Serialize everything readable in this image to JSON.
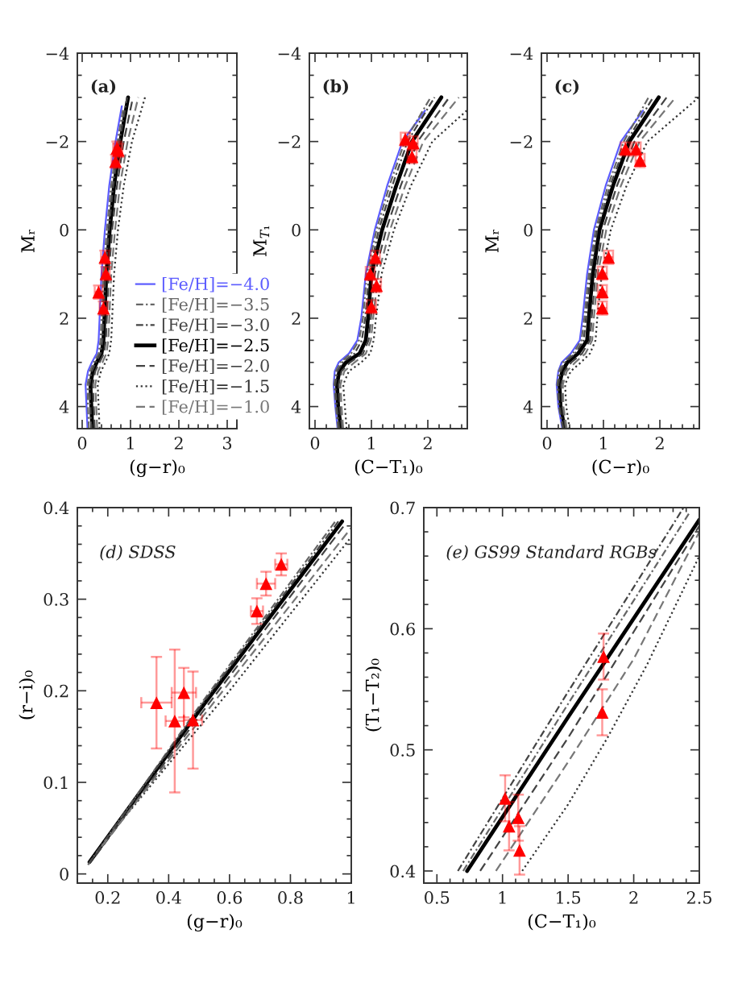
{
  "chart_data": [
    {
      "type": "line",
      "title": "(a)",
      "xlabel": "(g−r)₀",
      "ylabel": "Mᵣ",
      "xlim": [
        -0.1,
        3.2
      ],
      "ylim": [
        4.5,
        -4
      ],
      "xticks": [
        0,
        1,
        2,
        3
      ],
      "yticks": [
        -4,
        -2,
        0,
        2,
        4
      ],
      "legend": "lower right",
      "series": [
        {
          "name": "[Fe/H]=−4.0",
          "color": "#5c5cff",
          "line_style": "solid",
          "x": [
            0.11,
            0.09,
            0.07,
            0.12,
            0.2,
            0.3,
            0.34,
            0.36,
            0.4,
            0.47,
            0.56,
            0.69,
            0.82
          ],
          "values": [
            4.5,
            4.0,
            3.5,
            3.2,
            3.0,
            2.8,
            2.5,
            2.0,
            1.0,
            0.0,
            -1.0,
            -2.0,
            -2.8
          ]
        },
        {
          "name": "[Fe/H]=−3.5",
          "color": "#666666",
          "line_style": "dashdot",
          "x": [
            0.14,
            0.12,
            0.11,
            0.16,
            0.24,
            0.34,
            0.38,
            0.4,
            0.44,
            0.51,
            0.6,
            0.73,
            0.85
          ],
          "values": [
            4.5,
            4.0,
            3.5,
            3.2,
            3.0,
            2.8,
            2.5,
            2.0,
            1.0,
            0.0,
            -1.0,
            -2.0,
            -2.75
          ]
        },
        {
          "name": "[Fe/H]=−3.0",
          "color": "#444444",
          "line_style": "dashdot",
          "x": [
            0.19,
            0.17,
            0.15,
            0.2,
            0.28,
            0.38,
            0.42,
            0.44,
            0.48,
            0.55,
            0.64,
            0.77,
            0.93
          ],
          "values": [
            4.5,
            4.0,
            3.5,
            3.2,
            3.0,
            2.8,
            2.5,
            2.0,
            1.0,
            0.0,
            -1.0,
            -2.0,
            -3.0
          ]
        },
        {
          "name": "[Fe/H]=−2.5",
          "color": "#000000",
          "line_style": "solid",
          "x": [
            0.21,
            0.19,
            0.17,
            0.22,
            0.3,
            0.4,
            0.44,
            0.46,
            0.5,
            0.57,
            0.66,
            0.79,
            0.95
          ],
          "values": [
            4.5,
            4.0,
            3.5,
            3.2,
            3.0,
            2.8,
            2.5,
            2.0,
            1.0,
            0.0,
            -1.0,
            -2.0,
            -3.0
          ]
        },
        {
          "name": "[Fe/H]=−2.0",
          "color": "#444444",
          "line_style": "dashed",
          "x": [
            0.26,
            0.24,
            0.22,
            0.27,
            0.36,
            0.45,
            0.49,
            0.51,
            0.55,
            0.62,
            0.72,
            0.86,
            1.05
          ],
          "values": [
            4.5,
            4.0,
            3.5,
            3.2,
            3.0,
            2.8,
            2.5,
            2.0,
            1.0,
            0.0,
            -1.0,
            -2.0,
            -3.0
          ]
        },
        {
          "name": "[Fe/H]=−1.5",
          "color": "#333333",
          "line_style": "dotted",
          "x": [
            0.36,
            0.34,
            0.32,
            0.39,
            0.48,
            0.56,
            0.6,
            0.62,
            0.66,
            0.74,
            0.86,
            1.03,
            1.3
          ],
          "values": [
            4.5,
            4.0,
            3.5,
            3.2,
            3.0,
            2.8,
            2.5,
            2.0,
            1.0,
            0.0,
            -1.0,
            -2.0,
            -3.0
          ]
        },
        {
          "name": "[Fe/H]=−1.0",
          "color": "#777777",
          "line_style": "dashed",
          "x": [
            0.31,
            0.29,
            0.27,
            0.33,
            0.42,
            0.5,
            0.54,
            0.56,
            0.6,
            0.68,
            0.78,
            0.94,
            1.16
          ],
          "values": [
            4.5,
            4.0,
            3.5,
            3.2,
            3.0,
            2.8,
            2.5,
            2.0,
            1.0,
            0.0,
            -1.0,
            -2.0,
            -3.0
          ]
        },
        {
          "type": "scatter",
          "color": "#ff0000",
          "marker": "triangle",
          "x": [
            0.72,
            0.75,
            0.69,
            0.47,
            0.49,
            0.34,
            0.44
          ],
          "values": [
            -1.85,
            -1.8,
            -1.55,
            0.62,
            0.99,
            1.41,
            1.77
          ],
          "errors": [
            0.15,
            0.15,
            0.15,
            0.15,
            0.15,
            0.15,
            0.15
          ],
          "xerrors": [
            0.08,
            0.08,
            0.08,
            0.08,
            0.08,
            0.08,
            0.08
          ]
        }
      ]
    },
    {
      "type": "line",
      "title": "(b)",
      "xlabel": "(C−T₁)₀",
      "ylabel": "M$_{T₁}$",
      "xlim": [
        -0.1,
        2.7
      ],
      "ylim": [
        4.5,
        -4
      ],
      "xticks": [
        0,
        1,
        2
      ],
      "yticks": [
        -4,
        -2,
        0,
        2,
        4
      ],
      "series": [
        {
          "color": "#5c5cff",
          "line_style": "solid",
          "x": [
            0.4,
            0.36,
            0.33,
            0.35,
            0.42,
            0.6,
            0.75,
            0.82,
            0.9,
            1.06,
            1.28,
            1.55,
            1.95
          ],
          "values": [
            4.5,
            4.0,
            3.5,
            3.2,
            3.0,
            2.8,
            2.5,
            2.0,
            1.0,
            0.0,
            -1.0,
            -2.0,
            -2.7
          ]
        },
        {
          "color": "#666666",
          "line_style": "dashdot",
          "x": [
            0.41,
            0.37,
            0.34,
            0.37,
            0.45,
            0.64,
            0.78,
            0.85,
            0.92,
            1.09,
            1.32,
            1.59,
            2.05
          ],
          "values": [
            4.5,
            4.0,
            3.5,
            3.2,
            3.0,
            2.8,
            2.5,
            2.0,
            1.0,
            0.0,
            -1.0,
            -2.0,
            -3.0
          ]
        },
        {
          "color": "#444444",
          "line_style": "dashdot",
          "x": [
            0.43,
            0.39,
            0.36,
            0.4,
            0.49,
            0.7,
            0.83,
            0.89,
            0.96,
            1.13,
            1.37,
            1.64,
            2.12
          ],
          "values": [
            4.5,
            4.0,
            3.5,
            3.2,
            3.0,
            2.8,
            2.5,
            2.0,
            1.0,
            0.0,
            -1.0,
            -2.0,
            -3.0
          ]
        },
        {
          "color": "#000000",
          "line_style": "solid",
          "x": [
            0.46,
            0.41,
            0.39,
            0.43,
            0.55,
            0.79,
            0.9,
            0.94,
            1.0,
            1.19,
            1.44,
            1.72,
            2.24
          ],
          "values": [
            4.5,
            4.0,
            3.5,
            3.2,
            3.0,
            2.8,
            2.5,
            2.0,
            1.0,
            0.0,
            -1.0,
            -2.0,
            -3.0
          ]
        },
        {
          "color": "#444444",
          "line_style": "dashed",
          "x": [
            0.48,
            0.44,
            0.42,
            0.47,
            0.62,
            0.85,
            0.95,
            0.99,
            1.06,
            1.26,
            1.52,
            1.82,
            2.38
          ],
          "values": [
            4.5,
            4.0,
            3.5,
            3.2,
            3.0,
            2.8,
            2.5,
            2.0,
            1.0,
            0.0,
            -1.0,
            -2.0,
            -3.0
          ]
        },
        {
          "color": "#333333",
          "line_style": "dotted",
          "x": [
            0.56,
            0.53,
            0.5,
            0.6,
            0.82,
            0.98,
            1.04,
            1.08,
            1.18,
            1.4,
            1.7,
            2.08,
            2.69
          ],
          "values": [
            4.5,
            4.0,
            3.5,
            3.2,
            3.0,
            2.8,
            2.5,
            2.0,
            1.0,
            0.0,
            -1.0,
            -2.0,
            -2.7
          ]
        },
        {
          "color": "#777777",
          "line_style": "dashed",
          "x": [
            0.5,
            0.47,
            0.45,
            0.52,
            0.7,
            0.9,
            0.99,
            1.03,
            1.12,
            1.33,
            1.6,
            1.92,
            2.55
          ],
          "values": [
            4.5,
            4.0,
            3.5,
            3.2,
            3.0,
            2.8,
            2.5,
            2.0,
            1.0,
            0.0,
            -1.0,
            -2.0,
            -3.0
          ]
        },
        {
          "type": "scatter",
          "color": "#ff0000",
          "marker": "triangle",
          "x": [
            1.6,
            1.74,
            1.72,
            1.07,
            0.98,
            1.09,
            1.0
          ],
          "values": [
            -2.05,
            -1.97,
            -1.66,
            0.62,
            0.99,
            1.26,
            1.74
          ],
          "errors": [
            0.15,
            0.15,
            0.15,
            0.15,
            0.15,
            0.15,
            0.15
          ],
          "xerrors": [
            0.08,
            0.08,
            0.08,
            0.08,
            0.08,
            0.08,
            0.08
          ]
        }
      ]
    },
    {
      "type": "line",
      "title": "(c)",
      "xlabel": "(C−r)₀",
      "ylabel": "Mᵣ",
      "xlim": [
        -0.1,
        2.7
      ],
      "ylim": [
        4.5,
        -4
      ],
      "xticks": [
        0,
        1,
        2
      ],
      "yticks": [
        -4,
        -2,
        0,
        2,
        4
      ],
      "series": [
        {
          "color": "#5c5cff",
          "line_style": "solid",
          "x": [
            0.27,
            0.2,
            0.17,
            0.2,
            0.26,
            0.42,
            0.58,
            0.63,
            0.71,
            0.83,
            1.04,
            1.31,
            1.7
          ],
          "values": [
            4.5,
            4.0,
            3.5,
            3.2,
            3.0,
            2.8,
            2.5,
            2.0,
            1.0,
            0.0,
            -1.0,
            -2.0,
            -2.7
          ]
        },
        {
          "color": "#666666",
          "line_style": "dashdot",
          "x": [
            0.28,
            0.21,
            0.18,
            0.21,
            0.28,
            0.46,
            0.61,
            0.66,
            0.74,
            0.86,
            1.08,
            1.36,
            1.8
          ],
          "values": [
            4.5,
            4.0,
            3.5,
            3.2,
            3.0,
            2.8,
            2.5,
            2.0,
            1.0,
            0.0,
            -1.0,
            -2.0,
            -3.0
          ]
        },
        {
          "color": "#444444",
          "line_style": "dashdot",
          "x": [
            0.29,
            0.22,
            0.2,
            0.24,
            0.32,
            0.5,
            0.65,
            0.69,
            0.77,
            0.89,
            1.12,
            1.41,
            1.88
          ],
          "values": [
            4.5,
            4.0,
            3.5,
            3.2,
            3.0,
            2.8,
            2.5,
            2.0,
            1.0,
            0.0,
            -1.0,
            -2.0,
            -3.0
          ]
        },
        {
          "color": "#000000",
          "line_style": "solid",
          "x": [
            0.31,
            0.24,
            0.22,
            0.27,
            0.36,
            0.55,
            0.71,
            0.74,
            0.81,
            0.93,
            1.17,
            1.46,
            1.98
          ],
          "values": [
            4.5,
            4.0,
            3.5,
            3.2,
            3.0,
            2.8,
            2.5,
            2.0,
            1.0,
            0.0,
            -1.0,
            -2.0,
            -3.0
          ]
        },
        {
          "color": "#444444",
          "line_style": "dashed",
          "x": [
            0.33,
            0.27,
            0.25,
            0.31,
            0.43,
            0.62,
            0.76,
            0.79,
            0.86,
            0.99,
            1.24,
            1.55,
            2.12
          ],
          "values": [
            4.5,
            4.0,
            3.5,
            3.2,
            3.0,
            2.8,
            2.5,
            2.0,
            1.0,
            0.0,
            -1.0,
            -2.0,
            -3.0
          ]
        },
        {
          "color": "#333333",
          "line_style": "dotted",
          "x": [
            0.4,
            0.34,
            0.32,
            0.42,
            0.6,
            0.76,
            0.86,
            0.89,
            0.97,
            1.13,
            1.41,
            1.78,
            2.69
          ],
          "values": [
            4.5,
            4.0,
            3.5,
            3.2,
            3.0,
            2.8,
            2.5,
            2.0,
            1.0,
            0.0,
            -1.0,
            -2.0,
            -3.0
          ]
        },
        {
          "color": "#777777",
          "line_style": "dashed",
          "x": [
            0.35,
            0.29,
            0.28,
            0.35,
            0.5,
            0.68,
            0.8,
            0.83,
            0.9,
            1.05,
            1.31,
            1.64,
            2.28
          ],
          "values": [
            4.5,
            4.0,
            3.5,
            3.2,
            3.0,
            2.8,
            2.5,
            2.0,
            1.0,
            0.0,
            -1.0,
            -2.0,
            -3.0
          ]
        },
        {
          "type": "scatter",
          "color": "#ff0000",
          "marker": "triangle",
          "x": [
            1.39,
            1.58,
            1.65,
            1.09,
            0.98,
            0.98,
            0.98
          ],
          "values": [
            -1.83,
            -1.83,
            -1.57,
            0.62,
            0.98,
            1.4,
            1.77
          ],
          "errors": [
            0.15,
            0.15,
            0.15,
            0.15,
            0.15,
            0.15,
            0.15
          ],
          "xerrors": [
            0.08,
            0.08,
            0.08,
            0.08,
            0.08,
            0.08,
            0.08
          ]
        }
      ]
    },
    {
      "type": "line",
      "title": "(d) SDSS",
      "xlabel": "(g−r)₀",
      "ylabel": "(r−i)₀",
      "xlim": [
        0.1,
        1
      ],
      "ylim": [
        -0.01,
        0.4
      ],
      "xticks": [
        0.2,
        0.4,
        0.6,
        0.8,
        1
      ],
      "yticks": [
        0,
        0.1,
        0.2,
        0.3,
        0.4
      ],
      "series": [
        {
          "color": "#666666",
          "line_style": "dashdot",
          "x": [
            0.135,
            0.5,
            0.95
          ],
          "values": [
            0.01,
            0.183,
            0.386
          ]
        },
        {
          "color": "#444444",
          "line_style": "dashdot",
          "x": [
            0.14,
            0.5,
            0.96
          ],
          "values": [
            0.012,
            0.181,
            0.386
          ]
        },
        {
          "color": "#000000",
          "line_style": "solid",
          "x": [
            0.14,
            0.5,
            0.97
          ],
          "values": [
            0.013,
            0.178,
            0.385
          ]
        },
        {
          "color": "#444444",
          "line_style": "dashed",
          "x": [
            0.16,
            0.5,
            0.98
          ],
          "values": [
            0.02,
            0.172,
            0.382
          ]
        },
        {
          "color": "#333333",
          "line_style": "dotted",
          "x": [
            0.22,
            0.6,
            1.0
          ],
          "values": [
            0.048,
            0.2,
            0.368
          ]
        },
        {
          "color": "#777777",
          "line_style": "dashed",
          "x": [
            0.18,
            0.55,
            1.0
          ],
          "values": [
            0.03,
            0.188,
            0.378
          ]
        },
        {
          "type": "scatter",
          "color": "#ff0000",
          "marker": "triangle",
          "x": [
            0.36,
            0.42,
            0.45,
            0.48,
            0.69,
            0.72,
            0.77
          ],
          "values": [
            0.187,
            0.167,
            0.198,
            0.168,
            0.287,
            0.317,
            0.338
          ],
          "errors": [
            0.05,
            0.078,
            0.027,
            0.053,
            0.014,
            0.013,
            0.012
          ],
          "xerrors": [
            0.05,
            0.03,
            0.04,
            0.03,
            0.02,
            0.03,
            0.02
          ]
        }
      ]
    },
    {
      "type": "line",
      "title": "(e) GS99 Standard RGBs",
      "xlabel": "(C−T₁)₀",
      "ylabel": "(T₁−T₂)₀",
      "xlim": [
        0.4,
        2.5
      ],
      "ylim": [
        0.39,
        0.7
      ],
      "xticks": [
        0.5,
        1,
        1.5,
        2,
        2.5
      ],
      "yticks": [
        0.4,
        0.5,
        0.6,
        0.7
      ],
      "series": [
        {
          "color": "#666666",
          "line_style": "dashdot",
          "x": [
            0.7,
            1.5,
            2.42
          ],
          "values": [
            0.4,
            0.538,
            0.695
          ]
        },
        {
          "color": "#444444",
          "line_style": "dashdot",
          "x": [
            0.66,
            1.5,
            2.38
          ],
          "values": [
            0.4,
            0.548,
            0.7
          ]
        },
        {
          "color": "#000000",
          "line_style": "solid",
          "x": [
            0.73,
            1.5,
            2.5
          ],
          "values": [
            0.4,
            0.527,
            0.69
          ]
        },
        {
          "color": "#444444",
          "line_style": "dashed",
          "x": [
            0.83,
            1.5,
            2.5
          ],
          "values": [
            0.4,
            0.51,
            0.685
          ]
        },
        {
          "color": "#333333",
          "line_style": "dotted",
          "x": [
            1.15,
            1.5,
            1.8,
            2.1,
            2.5
          ],
          "values": [
            0.4,
            0.455,
            0.51,
            0.57,
            0.66
          ]
        },
        {
          "color": "#777777",
          "line_style": "dashed",
          "x": [
            0.95,
            1.5,
            2.0,
            2.5
          ],
          "values": [
            0.4,
            0.49,
            0.575,
            0.68
          ]
        },
        {
          "type": "scatter",
          "color": "#ff0000",
          "marker": "triangle",
          "x": [
            1.02,
            1.05,
            1.12,
            1.13,
            1.77,
            1.76
          ],
          "values": [
            0.46,
            0.437,
            0.444,
            0.417,
            0.577,
            0.531
          ],
          "errors": [
            0.019,
            0.02,
            0.019,
            0.02,
            0.019,
            0.019
          ]
        }
      ]
    }
  ]
}
